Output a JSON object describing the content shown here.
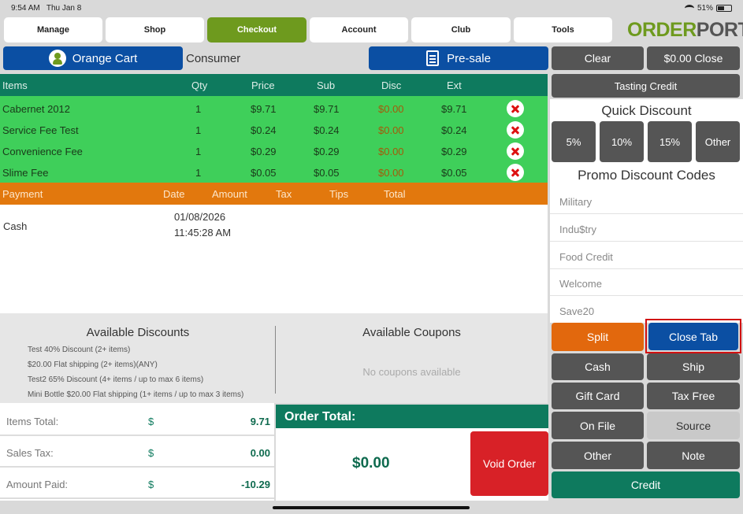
{
  "status": {
    "time": "9:54 AM",
    "date": "Thu Jan 8",
    "battery": "51%",
    "battery_level": 0.51
  },
  "nav": {
    "tabs": [
      "Manage",
      "Shop",
      "Checkout",
      "Account",
      "Club",
      "Tools"
    ],
    "active": "Checkout"
  },
  "logo": {
    "part1": "ORDER",
    "part2": "PORT"
  },
  "cart": {
    "name": "Orange Cart",
    "customer_type": "Consumer",
    "presale_label": "Pre-sale"
  },
  "actions": {
    "clear": "Clear",
    "close_zero": "$0.00 Close",
    "tasting_credit": "Tasting Credit"
  },
  "items_table": {
    "headers": {
      "items": "Items",
      "qty": "Qty",
      "price": "Price",
      "sub": "Sub",
      "disc": "Disc",
      "ext": "Ext"
    },
    "rows": [
      {
        "name": "Cabernet 2012",
        "qty": "1",
        "price": "$9.71",
        "sub": "$9.71",
        "disc": "$0.00",
        "ext": "$9.71"
      },
      {
        "name": "Service Fee Test",
        "qty": "1",
        "price": "$0.24",
        "sub": "$0.24",
        "disc": "$0.00",
        "ext": "$0.24"
      },
      {
        "name": "Convenience Fee",
        "qty": "1",
        "price": "$0.29",
        "sub": "$0.29",
        "disc": "$0.00",
        "ext": "$0.29"
      },
      {
        "name": "Slime Fee",
        "qty": "1",
        "price": "$0.05",
        "sub": "$0.05",
        "disc": "$0.00",
        "ext": "$0.05"
      }
    ]
  },
  "payment_table": {
    "headers": {
      "payment": "Payment",
      "date": "Date",
      "amount": "Amount",
      "tax": "Tax",
      "tips": "Tips",
      "total": "Total"
    },
    "rows": [
      {
        "method": "Cash",
        "date": "01/08/2026",
        "time": "11:45:28 AM"
      }
    ]
  },
  "discounts": {
    "title": "Available Discounts",
    "items": [
      "Test 40% Discount (2+ items)",
      "$20.00 Flat shipping (2+ items)(ANY)",
      "Test2 65% Discount (4+ items / up to max 6 items)",
      "Mini Bottle  $20.00 Flat shipping (1+ items / up to max 3 items)"
    ]
  },
  "coupons": {
    "title": "Available Coupons",
    "empty_text": "No coupons available"
  },
  "totals": {
    "items_total_label": "Items Total:",
    "items_total": "9.71",
    "sales_tax_label": "Sales Tax:",
    "sales_tax": "0.00",
    "amount_paid_label": "Amount Paid:",
    "amount_paid": "-10.29",
    "currency": "$"
  },
  "order_total": {
    "label": "Order Total:",
    "value": "$0.00",
    "void_label": "Void Order"
  },
  "quick_discount": {
    "title": "Quick Discount",
    "options": [
      "5%",
      "10%",
      "15%",
      "Other"
    ]
  },
  "promo": {
    "title": "Promo Discount Codes",
    "codes": [
      "Military",
      "Indu$try",
      "Food Credit",
      "Welcome",
      "Save20"
    ]
  },
  "buttons": {
    "split": "Split",
    "close_tab": "Close Tab",
    "cash": "Cash",
    "ship": "Ship",
    "gift_card": "Gift Card",
    "tax_free": "Tax Free",
    "on_file": "On File",
    "source": "Source",
    "other": "Other",
    "note": "Note",
    "credit": "Credit"
  },
  "colors": {
    "green": "#6e9a1e",
    "teal": "#0e7a5e",
    "orange": "#e2680d",
    "blue": "#0b4fa3",
    "highlight": "#d11010"
  }
}
